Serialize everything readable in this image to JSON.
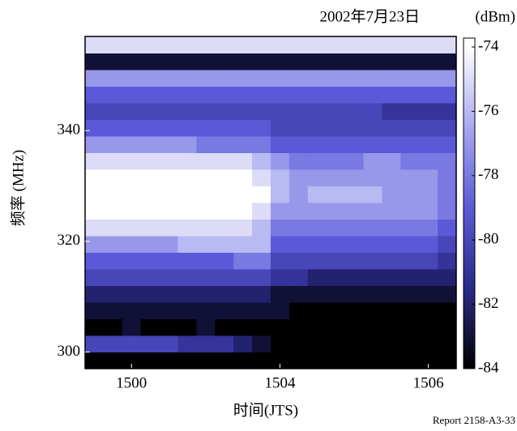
{
  "chart_data": {
    "type": "heatmap",
    "title": "2002年7月23日",
    "colorbar_label": "(dBm)",
    "y_label": "频率 (MHz)",
    "x_label": "时间(JTS)",
    "note": "Report 2158-A3-33",
    "categories": [
      null,
      null,
      "1500",
      null,
      null,
      null,
      null,
      null,
      null,
      null,
      "1504",
      null,
      null,
      null,
      null,
      null,
      null,
      null,
      "1506",
      null
    ],
    "ybins": [
      297,
      300,
      303,
      306,
      309,
      312,
      315,
      318,
      321,
      324,
      327,
      330,
      333,
      336,
      339,
      342,
      345,
      348,
      351,
      354,
      357
    ],
    "ylim": [
      297,
      357
    ],
    "yticks": [
      300,
      320,
      340
    ],
    "zlim": [
      -84,
      -74
    ],
    "zticks": [
      -74,
      -76,
      -78,
      -80,
      -82,
      -84
    ],
    "colorscale": [
      "#000000",
      "#2a2a8a",
      "#5a5ad8",
      "#a8a8f0",
      "#ffffff"
    ],
    "z": [
      [
        -84,
        -84,
        -84,
        -84,
        -84,
        -84,
        -84,
        -84,
        -84,
        -84,
        -84,
        -84,
        -84,
        -84,
        -84,
        -84,
        -84,
        -84,
        -84,
        -84
      ],
      [
        -80,
        -80,
        -80,
        -80,
        -80,
        -81,
        -81,
        -81,
        -82,
        -83,
        -84,
        -84,
        -84,
        -84,
        -84,
        -84,
        -84,
        -84,
        -84,
        -84
      ],
      [
        -84,
        -84,
        -83,
        -84,
        -84,
        -84,
        -83,
        -84,
        -84,
        -84,
        -84,
        -84,
        -84,
        -84,
        -84,
        -84,
        -84,
        -84,
        -84,
        -84
      ],
      [
        -83,
        -83,
        -83,
        -83,
        -83,
        -83,
        -83,
        -83,
        -83,
        -83,
        -83,
        -84,
        -84,
        -84,
        -84,
        -84,
        -84,
        -84,
        -84,
        -84
      ],
      [
        -82,
        -82,
        -82,
        -82,
        -82,
        -82,
        -82,
        -82,
        -82,
        -82,
        -83,
        -83,
        -83,
        -83,
        -83,
        -83,
        -83,
        -83,
        -83,
        -83
      ],
      [
        -80,
        -80,
        -80,
        -80,
        -80,
        -80,
        -80,
        -80,
        -80,
        -80,
        -81,
        -81,
        -82,
        -82,
        -82,
        -82,
        -82,
        -82,
        -82,
        -82
      ],
      [
        -79,
        -79,
        -79,
        -79,
        -79,
        -79,
        -79,
        -79,
        -78,
        -78,
        -80,
        -80,
        -80,
        -80,
        -80,
        -80,
        -80,
        -80,
        -80,
        -81
      ],
      [
        -77,
        -77,
        -77,
        -77,
        -77,
        -76,
        -76,
        -76,
        -76,
        -76,
        -79,
        -79,
        -79,
        -79,
        -79,
        -79,
        -79,
        -79,
        -79,
        -80
      ],
      [
        -75,
        -75,
        -75,
        -75,
        -75,
        -75,
        -75,
        -75,
        -75,
        -76,
        -78,
        -78,
        -78,
        -78,
        -78,
        -78,
        -78,
        -78,
        -78,
        -79
      ],
      [
        -74,
        -74,
        -74,
        -74,
        -74,
        -74,
        -74,
        -74,
        -74,
        -75,
        -77,
        -77,
        -77,
        -77,
        -77,
        -77,
        -77,
        -77,
        -77,
        -78
      ],
      [
        -74,
        -74,
        -74,
        -74,
        -74,
        -74,
        -74,
        -74,
        -74,
        -74,
        -76,
        -77,
        -76,
        -76,
        -76,
        -76,
        -77,
        -77,
        -77,
        -78
      ],
      [
        -74,
        -74,
        -74,
        -74,
        -74,
        -74,
        -74,
        -74,
        -74,
        -75,
        -76,
        -77,
        -77,
        -77,
        -77,
        -77,
        -77,
        -77,
        -77,
        -78
      ],
      [
        -75,
        -75,
        -75,
        -75,
        -75,
        -75,
        -75,
        -75,
        -75,
        -76,
        -77,
        -78,
        -78,
        -78,
        -78,
        -77,
        -77,
        -78,
        -78,
        -78
      ],
      [
        -77,
        -77,
        -77,
        -77,
        -77,
        -77,
        -78,
        -78,
        -78,
        -78,
        -79,
        -79,
        -79,
        -79,
        -79,
        -79,
        -79,
        -79,
        -79,
        -79
      ],
      [
        -79,
        -79,
        -79,
        -79,
        -79,
        -79,
        -79,
        -79,
        -79,
        -79,
        -80,
        -80,
        -80,
        -80,
        -80,
        -80,
        -80,
        -80,
        -80,
        -80
      ],
      [
        -80,
        -80,
        -80,
        -80,
        -80,
        -80,
        -80,
        -80,
        -80,
        -80,
        -80,
        -80,
        -80,
        -80,
        -80,
        -80,
        -81,
        -81,
        -81,
        -81
      ],
      [
        -79,
        -79,
        -79,
        -79,
        -79,
        -79,
        -79,
        -79,
        -79,
        -79,
        -79,
        -79,
        -79,
        -79,
        -79,
        -79,
        -79,
        -79,
        -79,
        -79
      ],
      [
        -77,
        -77,
        -77,
        -77,
        -77,
        -77,
        -77,
        -77,
        -77,
        -77,
        -77,
        -77,
        -77,
        -77,
        -77,
        -77,
        -77,
        -77,
        -77,
        -77
      ],
      [
        -83,
        -83,
        -83,
        -83,
        -83,
        -83,
        -83,
        -83,
        -83,
        -83,
        -83,
        -83,
        -83,
        -83,
        -83,
        -83,
        -83,
        -83,
        -83,
        -83
      ],
      [
        -75,
        -75,
        -75,
        -75,
        -75,
        -75,
        -75,
        -75,
        -75,
        -75,
        -75,
        -75,
        -75,
        -75,
        -75,
        -75,
        -75,
        -75,
        -75,
        -75
      ]
    ]
  }
}
